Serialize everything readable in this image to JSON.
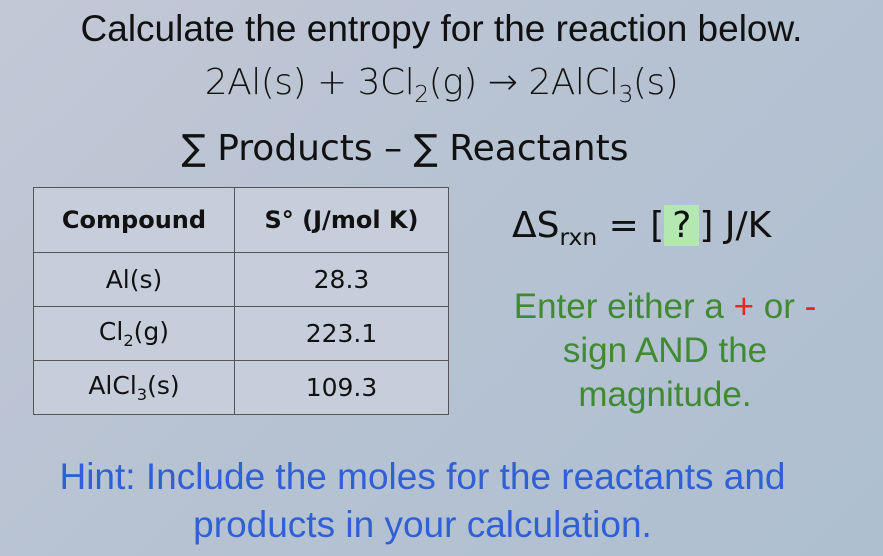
{
  "title": "Calculate the entropy for the reaction below.",
  "reaction": {
    "r1": "2Al(s)",
    "plus": " + ",
    "r2a": "3Cl",
    "r2sub": "2",
    "r2b": "(g)",
    "arrow": " → ",
    "p1a": "2AlCl",
    "p1sub": "3",
    "p1b": "(s)"
  },
  "formula": "∑ Products – ∑ Reactants",
  "table": {
    "headers": [
      "Compound",
      "S° (J/mol K)"
    ],
    "rows": [
      {
        "a": "Al(s)",
        "b": "",
        "c": "",
        "v": "28.3"
      },
      {
        "a": "Cl",
        "b": "2",
        "c": "(g)",
        "v": "223.1"
      },
      {
        "a": "AlCl",
        "b": "3",
        "c": "(s)",
        "v": "109.3"
      }
    ]
  },
  "answer": {
    "lhs": "ΔS",
    "lhs_sub": "rxn",
    "eq": " = ",
    "open": "[",
    "placeholder": "?",
    "close": "]",
    "unit": " J/K",
    "box_color": "#b4e8b0"
  },
  "instruction": {
    "t1": "Enter either a ",
    "plus": "+",
    "t2": " or ",
    "minus": "-",
    "t3": " sign AND the magnitude."
  },
  "hint": "Hint: Include the moles for the reactants and products in your calculation."
}
